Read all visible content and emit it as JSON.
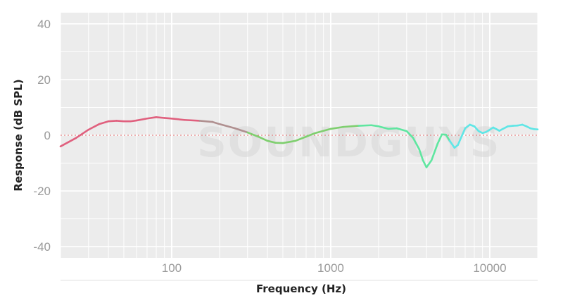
{
  "chart_data": {
    "type": "line",
    "title": "",
    "xlabel": "Frequency (Hz)",
    "ylabel": "Response (dB SPL)",
    "x_scale": "log",
    "xlim": [
      20,
      20000
    ],
    "ylim": [
      -44,
      44
    ],
    "x_ticks": [
      100,
      1000,
      10000
    ],
    "x_tick_labels": [
      "100",
      "1000",
      "10000"
    ],
    "y_ticks": [
      40,
      20,
      0,
      -20,
      -40
    ],
    "y_tick_labels": [
      "40",
      "20",
      "0",
      "-20",
      "-40"
    ],
    "grid": true,
    "reference_line": {
      "y": 0,
      "color": "#e06666",
      "style": "dotted"
    },
    "watermark": "SOUNDGUYS",
    "colors": {
      "low": "#e0607e",
      "mid_low": "#b09090",
      "mid": "#7fcf6f",
      "mid_high": "#5fe6a0",
      "high": "#5fe6e6"
    },
    "series": [
      {
        "x": [
          20,
          25,
          30,
          35,
          40,
          45,
          50,
          55,
          60,
          70,
          80,
          90,
          100,
          120,
          150,
          180,
          200,
          250,
          300,
          350,
          400,
          450,
          500,
          600,
          700,
          800,
          1000,
          1200,
          1500,
          1800,
          2000,
          2300,
          2600,
          3000,
          3300,
          3600,
          3800,
          4000,
          4300,
          4700,
          5000,
          5300,
          5600,
          6000,
          6300,
          6700,
          7000,
          7500,
          8000,
          8500,
          9000,
          9500,
          10000,
          10500,
          11000,
          11500,
          12000,
          13000,
          14000,
          15000,
          16000,
          17000,
          18000,
          19000,
          20000
        ],
        "y": [
          -4,
          -1,
          2,
          4,
          5,
          5.2,
          5,
          5,
          5.3,
          6,
          6.5,
          6.2,
          6,
          5.5,
          5.2,
          4.8,
          4,
          2.5,
          1,
          -0.5,
          -2,
          -2.7,
          -2.8,
          -2,
          -0.5,
          0.8,
          2.3,
          3,
          3.4,
          3.6,
          3.2,
          2.3,
          2.5,
          1.5,
          -1,
          -5,
          -9,
          -11.5,
          -9,
          -3,
          0.3,
          0.2,
          -2,
          -4.5,
          -3.5,
          0,
          2.5,
          3.8,
          3.2,
          1.5,
          0.8,
          1.2,
          2,
          2.8,
          2.2,
          1.6,
          2.2,
          3.2,
          3.4,
          3.5,
          3.8,
          3.2,
          2.5,
          2.2,
          2.1
        ]
      }
    ]
  }
}
